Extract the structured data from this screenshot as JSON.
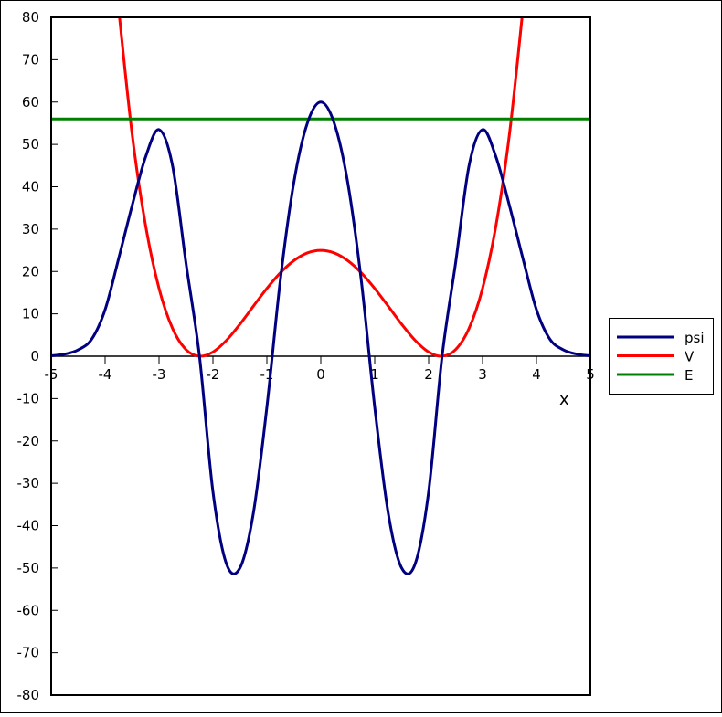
{
  "chart_data": {
    "type": "line",
    "title": "",
    "xlabel": "x",
    "ylabel": "",
    "xlim": [
      -5,
      5
    ],
    "ylim": [
      -80,
      80
    ],
    "xticks": [
      -5,
      -4,
      -3,
      -2,
      -1,
      0,
      1,
      2,
      3,
      4,
      5
    ],
    "yticks": [
      80,
      70,
      60,
      50,
      40,
      30,
      20,
      10,
      0,
      -10,
      -20,
      -30,
      -40,
      -50,
      -60,
      -70,
      -80
    ],
    "grid": false,
    "legend_position": "right",
    "series": [
      {
        "name": "psi",
        "color": "#000080",
        "x": [
          -5,
          -4.75,
          -4.5,
          -4.25,
          -4,
          -3.75,
          -3.5,
          -3.25,
          -3,
          -2.75,
          -2.5,
          -2.25,
          -2,
          -1.75,
          -1.5,
          -1.25,
          -1,
          -0.75,
          -0.5,
          -0.25,
          0,
          0.25,
          0.5,
          0.75,
          1,
          1.25,
          1.5,
          1.75,
          2,
          2.25,
          2.5,
          2.75,
          3,
          3.25,
          3.5,
          3.75,
          4,
          4.25,
          4.5,
          4.75,
          5
        ],
        "y": [
          0.1,
          0.5,
          1.5,
          4,
          11,
          23,
          35.5,
          47,
          53.5,
          45,
          22,
          0,
          -32,
          -49,
          -50,
          -37,
          -12,
          18,
          41,
          55,
          60,
          55,
          41,
          18,
          -12,
          -37,
          -50,
          -49,
          -32,
          0,
          22,
          45,
          53.5,
          47,
          35.5,
          23,
          11,
          4,
          1.5,
          0.5,
          0.1
        ]
      },
      {
        "name": "V",
        "color": "#ff0000",
        "x": [
          -3.75,
          -3.5,
          -3.25,
          -3,
          -2.75,
          -2.5,
          -2.25,
          -2,
          -1.75,
          -1.5,
          -1.25,
          -1,
          -0.75,
          -0.5,
          -0.25,
          0,
          0.25,
          0.5,
          0.75,
          1,
          1.25,
          1.5,
          1.75,
          2,
          2.25,
          2.5,
          2.75,
          3,
          3.25,
          3.5,
          3.75
        ],
        "y": [
          82.13,
          52.56,
          30.94,
          16,
          6.57,
          1.56,
          0.004,
          1,
          3.75,
          7.56,
          11.82,
          16,
          19.69,
          22.56,
          24.38,
          25,
          24.38,
          22.56,
          19.69,
          16,
          11.82,
          7.56,
          3.75,
          1,
          0.004,
          1.56,
          6.57,
          16,
          30.94,
          52.56,
          82.13
        ]
      },
      {
        "name": "E",
        "color": "#008000",
        "x": [
          -5,
          5
        ],
        "y": [
          56,
          56
        ]
      }
    ]
  }
}
